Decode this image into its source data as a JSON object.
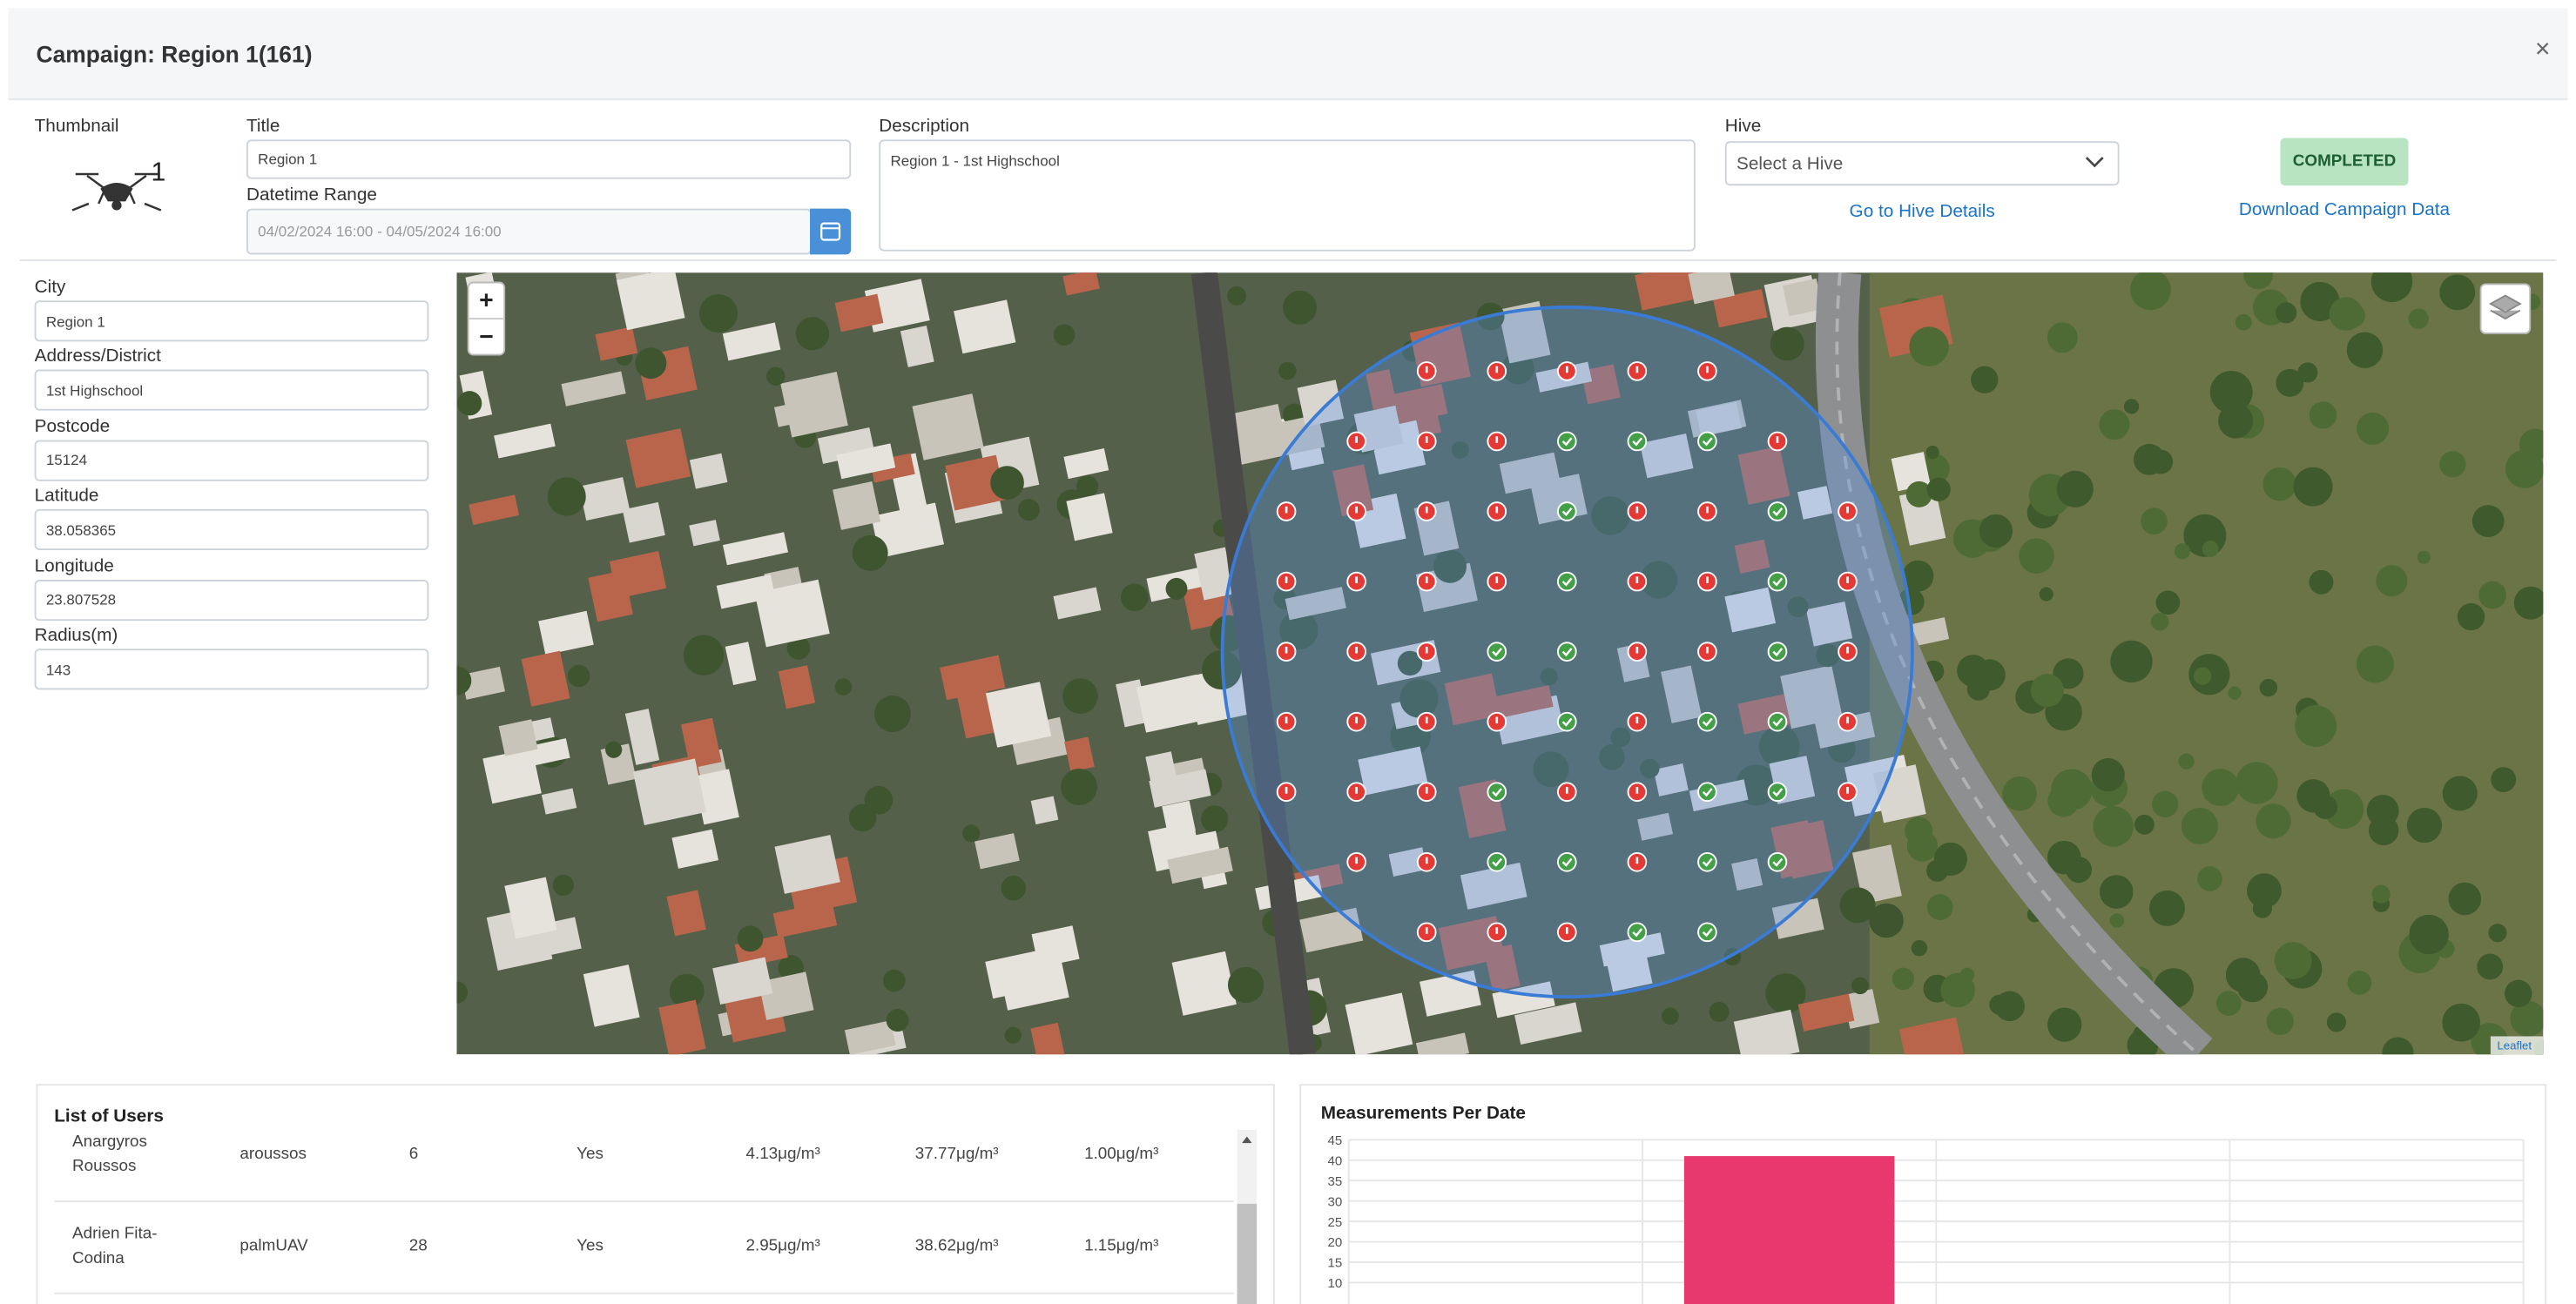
{
  "header": {
    "title": "Campaign: Region 1(161)",
    "close": "×"
  },
  "thumbnail": {
    "label": "Thumbnail",
    "badge": "1"
  },
  "title": {
    "label": "Title",
    "value": "Region 1"
  },
  "datetime": {
    "label": "Datetime Range",
    "value": "04/02/2024 16:00 - 04/05/2024 16:00"
  },
  "description": {
    "label": "Description",
    "value": "Region 1 - 1st Highschool"
  },
  "hive": {
    "label": "Hive",
    "placeholder": "Select a Hive",
    "link": "Go to Hive Details"
  },
  "status": "COMPLETED",
  "download": "Download Campaign Data",
  "fields": [
    {
      "label": "City",
      "value": "Region 1"
    },
    {
      "label": "Address/District",
      "value": "1st Highschool"
    },
    {
      "label": "Postcode",
      "value": "15124"
    },
    {
      "label": "Latitude",
      "value": "38.058365"
    },
    {
      "label": "Longitude",
      "value": "23.807528"
    },
    {
      "label": "Radius(m)",
      "value": "143"
    }
  ],
  "map": {
    "zoom_in": "+",
    "zoom_out": "−",
    "attribution": "Leaflet"
  },
  "users": {
    "title": "List of Users",
    "rows": [
      [
        "Anargyros Roussos",
        "aroussos",
        "6",
        "Yes",
        "4.13μg/m³",
        "37.77μg/m³",
        "1.00μg/m³"
      ],
      [
        "Adrien Fita-Codina",
        "palmUAV",
        "28",
        "Yes",
        "2.95μg/m³",
        "38.62μg/m³",
        "1.15μg/m³"
      ]
    ]
  },
  "chart_data": {
    "type": "bar",
    "title": "Measurements Per Date",
    "categories": [
      null,
      null,
      null,
      null
    ],
    "values": [
      null,
      41,
      null,
      null
    ],
    "color": "#e8386d",
    "ylim": [
      0,
      45
    ],
    "yticks": [
      10,
      15,
      20,
      25,
      30,
      35,
      40,
      45
    ],
    "grid": true
  }
}
